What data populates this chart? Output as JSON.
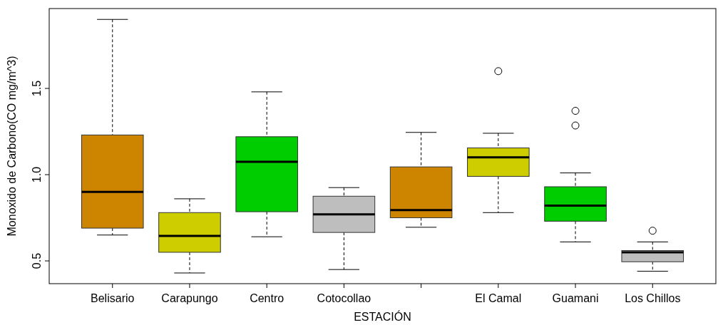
{
  "chart_data": {
    "type": "box",
    "xlabel": "ESTACIÓN",
    "ylabel": "Monoxido de Carbono(CO mg/m^3)",
    "categories": [
      "Belisario",
      "Carapungo",
      "Centro",
      "Cotocollao",
      null,
      "El Camal",
      "Guamani",
      "Los Chillos"
    ],
    "colors": [
      "#cd8500",
      "#cdcd00",
      "#00cd00",
      "#bebebe",
      "#cd8500",
      "#cdcd00",
      "#00cd00",
      "#bebebe"
    ],
    "boxes": [
      {
        "low": 0.65,
        "q1": 0.69,
        "median": 0.9,
        "q3": 1.23,
        "high": 1.9
      },
      {
        "low": 0.43,
        "q1": 0.55,
        "median": 0.645,
        "q3": 0.78,
        "high": 0.86
      },
      {
        "low": 0.64,
        "q1": 0.785,
        "median": 1.075,
        "q3": 1.22,
        "high": 1.48
      },
      {
        "low": 0.45,
        "q1": 0.665,
        "median": 0.77,
        "q3": 0.875,
        "high": 0.925
      },
      {
        "low": 0.695,
        "q1": 0.75,
        "median": 0.795,
        "q3": 1.045,
        "high": 1.245
      },
      {
        "low": 0.78,
        "q1": 0.99,
        "median": 1.1,
        "q3": 1.155,
        "high": 1.24,
        "outliers": [
          1.6
        ]
      },
      {
        "low": 0.61,
        "q1": 0.73,
        "median": 0.82,
        "q3": 0.93,
        "high": 1.01,
        "outliers": [
          1.37,
          1.285
        ]
      },
      {
        "low": 0.44,
        "q1": 0.495,
        "median": 0.55,
        "q3": 0.56,
        "high": 0.61,
        "outliers": [
          0.675
        ]
      }
    ],
    "ylim": [
      0.368,
      1.963
    ],
    "yticks": [
      {
        "value": 0.5,
        "label": "0.5"
      },
      {
        "value": 1.0,
        "label": "1.0"
      },
      {
        "value": 1.5,
        "label": "1.5"
      }
    ]
  }
}
